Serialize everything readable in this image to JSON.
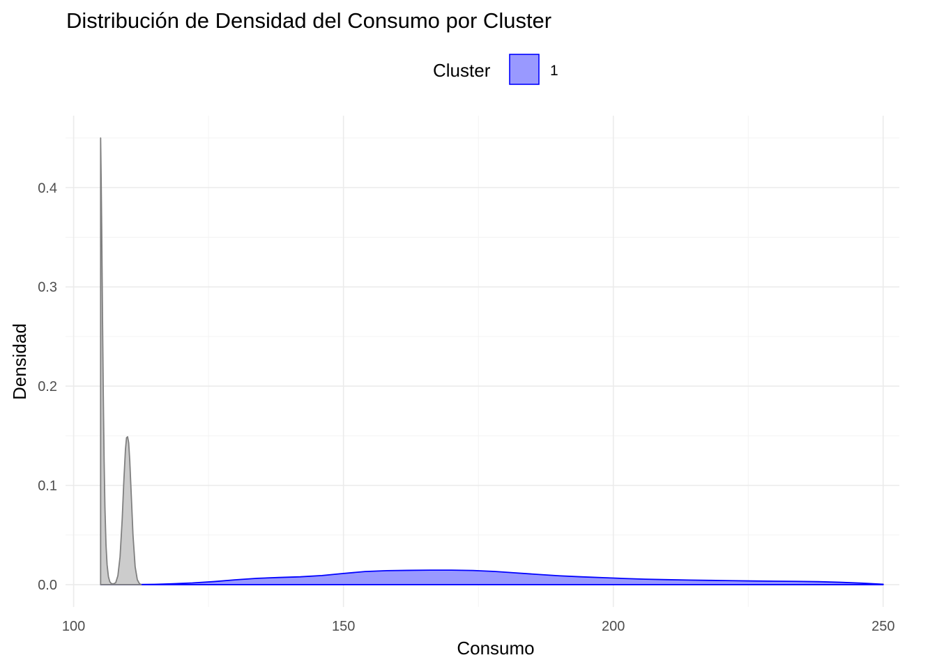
{
  "chart_data": {
    "type": "area",
    "title": "Distribución de Densidad del Consumo por Cluster",
    "xlabel": "Consumo",
    "ylabel": "Densidad",
    "xlim": [
      98.5,
      253
    ],
    "ylim": [
      -0.0225,
      0.4725
    ],
    "x_ticks": [
      100,
      150,
      200,
      250
    ],
    "x_tick_labels": [
      "100",
      "150",
      "200",
      "250"
    ],
    "x_minor_ticks": [
      125,
      175,
      225
    ],
    "y_ticks": [
      0.0,
      0.1,
      0.2,
      0.3,
      0.4
    ],
    "y_tick_labels": [
      "0.0",
      "0.1",
      "0.2",
      "0.3",
      "0.4"
    ],
    "y_minor_ticks": [
      0.05,
      0.15,
      0.25,
      0.35,
      0.45
    ],
    "grid": true,
    "legend": {
      "title": "Cluster",
      "position": "top",
      "entries": [
        {
          "label": "1",
          "fill": "#9999ff",
          "stroke": "#0000ff"
        }
      ]
    },
    "series": [
      {
        "name": "1",
        "fill": "#9999ff",
        "stroke": "#0000ff",
        "x": [
          105,
          110,
          115,
          118,
          122,
          126,
          130,
          134,
          138,
          142,
          146,
          150,
          154,
          158,
          162,
          166,
          170,
          174,
          178,
          182,
          186,
          190,
          194,
          198,
          202,
          206,
          210,
          214,
          218,
          222,
          226,
          230,
          234,
          238,
          242,
          246,
          250
        ],
        "y": [
          0.0,
          0.0,
          0.0003,
          0.0008,
          0.0017,
          0.0031,
          0.0049,
          0.0064,
          0.0072,
          0.0079,
          0.0092,
          0.0113,
          0.0132,
          0.0141,
          0.0144,
          0.0146,
          0.0146,
          0.0143,
          0.0133,
          0.0118,
          0.0103,
          0.0089,
          0.0079,
          0.0071,
          0.0062,
          0.0055,
          0.005,
          0.0046,
          0.0043,
          0.004,
          0.0037,
          0.0035,
          0.0033,
          0.003,
          0.0024,
          0.0015,
          0.0004
        ]
      },
      {
        "fill": "#cccccc",
        "stroke": "#7f7f7f",
        "x": [
          105,
          105.1,
          105.2,
          105.35,
          105.5,
          105.65,
          105.8,
          106.0,
          106.2,
          106.45,
          106.7,
          107.0,
          107.4,
          107.8,
          108.2,
          108.6,
          109.0,
          109.3,
          109.6,
          109.8,
          110.0,
          110.2,
          110.4,
          110.7,
          111.0,
          111.4,
          111.8,
          112.2,
          112.5
        ],
        "y": [
          0.45,
          0.41,
          0.36,
          0.27,
          0.19,
          0.125,
          0.078,
          0.04,
          0.02,
          0.008,
          0.003,
          0.001,
          0.0008,
          0.002,
          0.009,
          0.028,
          0.066,
          0.104,
          0.136,
          0.148,
          0.149,
          0.143,
          0.125,
          0.088,
          0.05,
          0.018,
          0.005,
          0.001,
          0.0
        ]
      }
    ]
  }
}
